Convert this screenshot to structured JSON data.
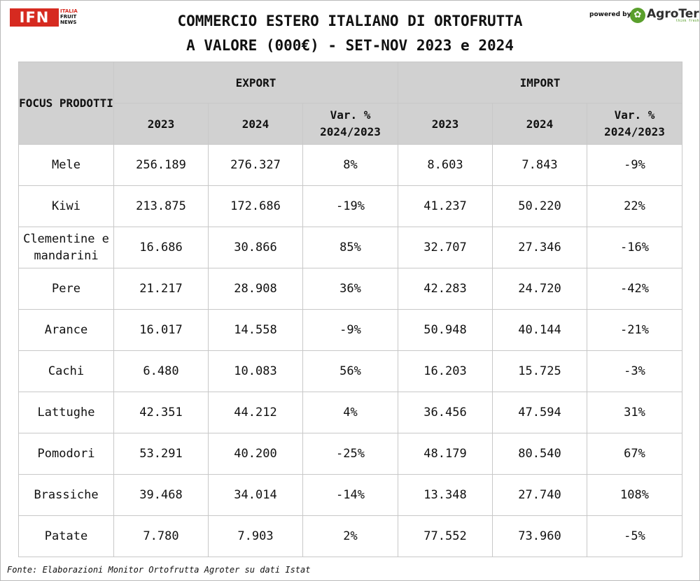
{
  "header": {
    "logo_ifn": "IFN",
    "logo_ifn_sub": [
      "ITALIA",
      "FRUIT",
      "NEWS"
    ],
    "title_line1": "COMMERCIO ESTERO ITALIANO DI ORTOFRUTTA",
    "title_line2": "A VALORE (000€) - SET-NOV 2023 e 2024",
    "powered_by": "powered by",
    "logo_agroter": "AgroTer",
    "logo_agroter_tag": "think fresh"
  },
  "table": {
    "corner_label": "FOCUS PRODOTTI",
    "group_export": "EXPORT",
    "group_import": "IMPORT",
    "col_2023": "2023",
    "col_2024": "2024",
    "col_var": "Var. % 2024/2023"
  },
  "chart_data": {
    "type": "table",
    "title": "COMMERCIO ESTERO ITALIANO DI ORTOFRUTTA A VALORE (000€) - SET-NOV 2023 e 2024",
    "columns": [
      "FOCUS PRODOTTI",
      "EXPORT 2023",
      "EXPORT 2024",
      "EXPORT Var. % 2024/2023",
      "IMPORT 2023",
      "IMPORT 2024",
      "IMPORT Var. % 2024/2023"
    ],
    "rows": [
      {
        "product": "Mele",
        "exp_2023": "256.189",
        "exp_2024": "276.327",
        "exp_var": "8%",
        "imp_2023": "8.603",
        "imp_2024": "7.843",
        "imp_var": "-9%"
      },
      {
        "product": "Kiwi",
        "exp_2023": "213.875",
        "exp_2024": "172.686",
        "exp_var": "-19%",
        "imp_2023": "41.237",
        "imp_2024": "50.220",
        "imp_var": "22%"
      },
      {
        "product": "Clementine e mandarini",
        "exp_2023": "16.686",
        "exp_2024": "30.866",
        "exp_var": "85%",
        "imp_2023": "32.707",
        "imp_2024": "27.346",
        "imp_var": "-16%"
      },
      {
        "product": "Pere",
        "exp_2023": "21.217",
        "exp_2024": "28.908",
        "exp_var": "36%",
        "imp_2023": "42.283",
        "imp_2024": "24.720",
        "imp_var": "-42%"
      },
      {
        "product": "Arance",
        "exp_2023": "16.017",
        "exp_2024": "14.558",
        "exp_var": "-9%",
        "imp_2023": "50.948",
        "imp_2024": "40.144",
        "imp_var": "-21%"
      },
      {
        "product": "Cachi",
        "exp_2023": "6.480",
        "exp_2024": "10.083",
        "exp_var": "56%",
        "imp_2023": "16.203",
        "imp_2024": "15.725",
        "imp_var": "-3%"
      },
      {
        "product": "Lattughe",
        "exp_2023": "42.351",
        "exp_2024": "44.212",
        "exp_var": "4%",
        "imp_2023": "36.456",
        "imp_2024": "47.594",
        "imp_var": "31%"
      },
      {
        "product": "Pomodori",
        "exp_2023": "53.291",
        "exp_2024": "40.200",
        "exp_var": "-25%",
        "imp_2023": "48.179",
        "imp_2024": "80.540",
        "imp_var": "67%"
      },
      {
        "product": "Brassiche",
        "exp_2023": "39.468",
        "exp_2024": "34.014",
        "exp_var": "-14%",
        "imp_2023": "13.348",
        "imp_2024": "27.740",
        "imp_var": "108%"
      },
      {
        "product": "Patate",
        "exp_2023": "7.780",
        "exp_2024": "7.903",
        "exp_var": "2%",
        "imp_2023": "77.552",
        "imp_2024": "73.960",
        "imp_var": "-5%"
      }
    ],
    "negative_color": "#c0271d",
    "header_bg": "#d1d1d1"
  },
  "source": "Fonte: Elaborazioni Monitor Ortofrutta Agroter su dati Istat"
}
